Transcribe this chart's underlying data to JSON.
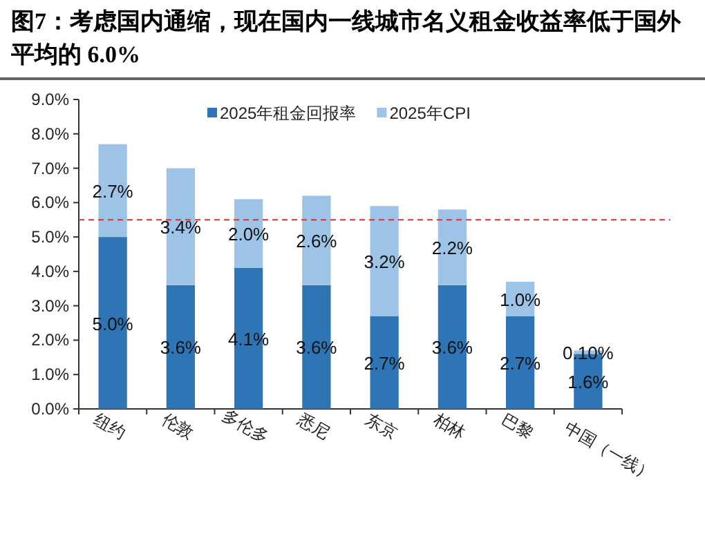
{
  "chart_data": {
    "type": "bar",
    "stacked": true,
    "title": "图7：考虑国内通缩，现在国内一线城市名义租金收益率低于国外平均的 6.0%",
    "categories": [
      "纽约",
      "伦敦",
      "多伦多",
      "悉尼",
      "东京",
      "柏林",
      "巴黎",
      "中国（一线）"
    ],
    "series": [
      {
        "name": "2025年租金回报率",
        "color": "#2e75b6",
        "values": [
          5.0,
          3.6,
          4.1,
          3.6,
          2.7,
          3.6,
          2.7,
          1.6
        ],
        "value_labels": [
          "5.0%",
          "3.6%",
          "4.1%",
          "3.6%",
          "2.7%",
          "3.6%",
          "2.7%",
          "1.6%"
        ]
      },
      {
        "name": "2025年CPI",
        "color": "#9dc3e6",
        "values": [
          2.7,
          3.4,
          2.0,
          2.6,
          3.2,
          2.2,
          1.0,
          0.1
        ],
        "value_labels": [
          "2.7%",
          "3.4%",
          "2.0%",
          "2.6%",
          "3.2%",
          "2.2%",
          "1.0%",
          "0.10%"
        ]
      }
    ],
    "ylim": [
      0,
      9
    ],
    "yticks": [
      {
        "value": 0,
        "label": "0.0%"
      },
      {
        "value": 1,
        "label": "1.0%"
      },
      {
        "value": 2,
        "label": "2.0%"
      },
      {
        "value": 3,
        "label": "3.0%"
      },
      {
        "value": 4,
        "label": "4.0%"
      },
      {
        "value": 5,
        "label": "5.0%"
      },
      {
        "value": 6,
        "label": "6.0%"
      },
      {
        "value": 7,
        "label": "7.0%"
      },
      {
        "value": 8,
        "label": "8.0%"
      },
      {
        "value": 9,
        "label": "9.0%"
      }
    ],
    "ref_lines": [
      {
        "axis": "y",
        "value": 5.5,
        "color": "#e03030",
        "line_style": "dashed"
      }
    ],
    "legend": "top",
    "grid": false
  }
}
